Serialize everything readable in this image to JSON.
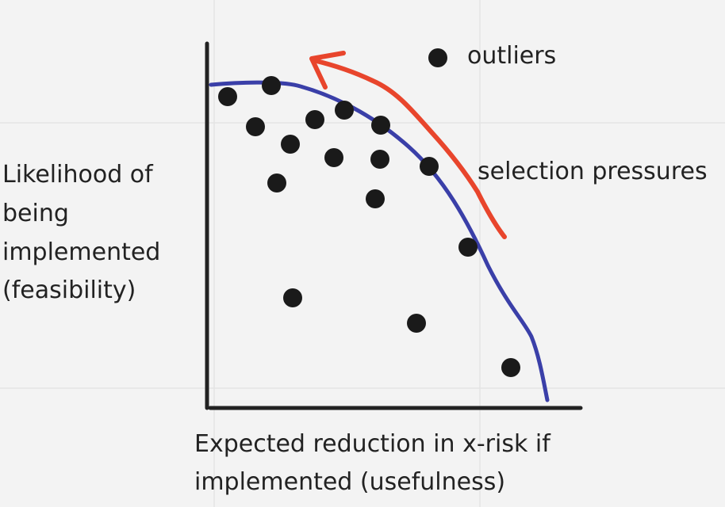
{
  "labels": {
    "outliers": "outliers",
    "selection_pressures": "selection pressures",
    "y_axis": [
      "Likelihood of",
      "being",
      "implemented",
      "(feasibility)"
    ],
    "x_axis": [
      "Expected reduction in x-risk if",
      "implemented (usefulness)"
    ]
  }
}
